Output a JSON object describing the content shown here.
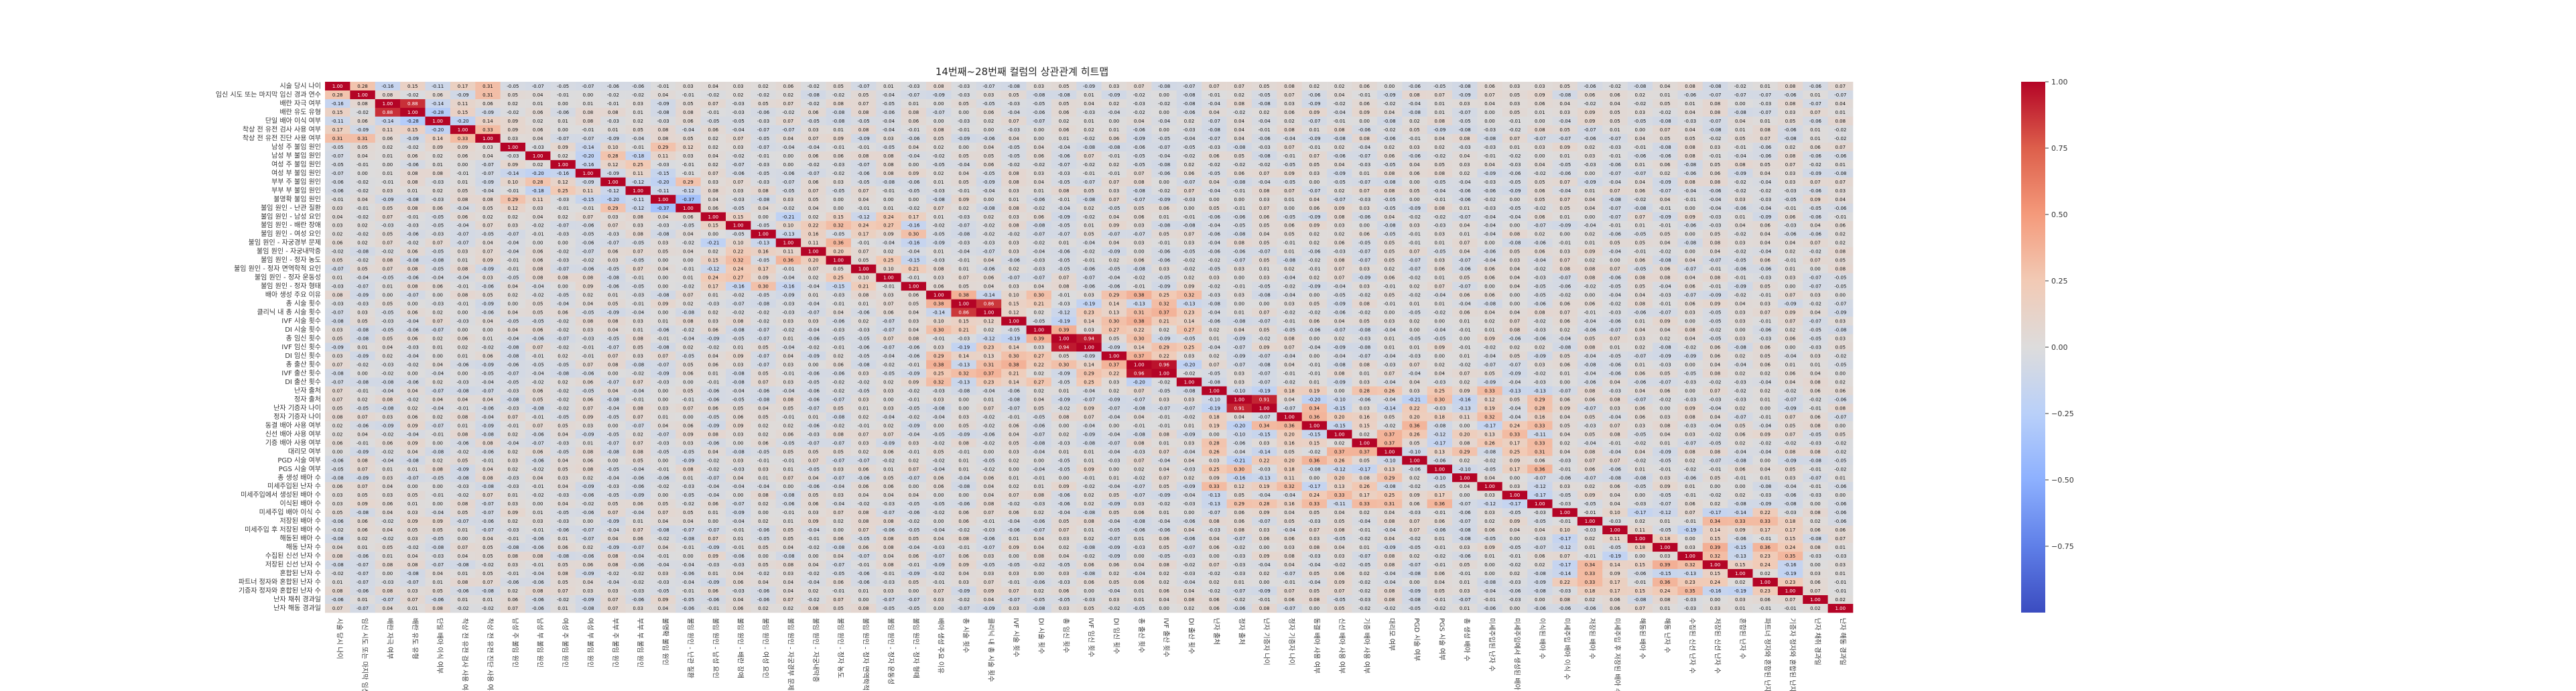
{
  "chart_data": {
    "type": "heatmap",
    "title": "14번째~28번째 컬럼의 상관관계 히트맵",
    "xlabel": "",
    "ylabel": "",
    "value_range": [
      -1,
      1
    ],
    "colormap": "coolwarm",
    "annotated": true,
    "colorbar": {
      "ticks": [
        1.0,
        0.75,
        0.5,
        0.25,
        0.0,
        -0.25,
        -0.5,
        -0.75
      ],
      "tick_labels": [
        "1.00",
        "0.75",
        "0.50",
        "0.25",
        "0.00",
        "−0.25",
        "−0.50",
        "−0.75"
      ],
      "position": "right"
    },
    "labels": [
      "시술 당시 나이",
      "임신 시도 또는 마지막 임신 경과 연수",
      "배란 자극 여부",
      "배란 유도 유형",
      "단일 배아 이식 여부",
      "착상 전 유전 검사 사용 여부",
      "착상 전 유전 진단 사용 여부",
      "남성 주 불임 원인",
      "남성 부 불임 원인",
      "여성 주 불임 원인",
      "여성 부 불임 원인",
      "부부 주 불임 원인",
      "부부 부 불임 원인",
      "불명확 불임 원인",
      "불임 원인 - 난관 질환",
      "불임 원인 - 남성 요인",
      "불임 원인 - 배란 장애",
      "불임 원인 - 여성 요인",
      "불임 원인 - 자궁경부 문제",
      "불임 원인 - 자궁내막증",
      "불임 원인 - 정자 농도",
      "불임 원인 - 정자 면역학적 요인",
      "불임 원인 - 정자 운동성",
      "불임 원인 - 정자 형태",
      "배아 생성 주요 이유",
      "총 시술 횟수",
      "클리닉 내 총 시술 횟수",
      "IVF 시술 횟수",
      "DI 시술 횟수",
      "총 임신 횟수",
      "IVF 임신 횟수",
      "DI 임신 횟수",
      "총 출산 횟수",
      "IVF 출산 횟수",
      "DI 출산 횟수",
      "난자 출처",
      "정자 출처",
      "난자 기증자 나이",
      "정자 기증자 나이",
      "동결 배아 사용 여부",
      "신선 배아 사용 여부",
      "기증 배아 사용 여부",
      "대리모 여부",
      "PGD 시술 여부",
      "PGS 시술 여부",
      "총 생성 배아 수",
      "미세주입된 난자 수",
      "미세주입에서 생성된 배아 수",
      "이식된 배아 수",
      "미세주입 배아 이식 수",
      "저장된 배아 수",
      "미세주입 후 저장된 배아 수",
      "해동된 배아 수",
      "해동 난자 수",
      "수집된 신선 난자 수",
      "저장된 신선 난자 수",
      "혼합된 난자 수",
      "파트너 정자와 혼합된 난자 수",
      "기증자 정자와 혼합된 난자 수",
      "난자 채취 경과일",
      "난자 해동 경과일"
    ],
    "row_labels_visible": [
      "시술 당시 나이",
      "임신 시도 또는 마지막 임신 경과 연수",
      "배란 자극 여부",
      "배란 유도 유형",
      "단일 배아 이식 여부",
      "착상 전 유전 검사 사용 여부",
      "착상 전 유전 진단 사용 여부",
      "남성 주 불임 원인",
      "남성 부 불임 원인",
      "여성 주 불임 원인",
      "여성 부 불임 원인",
      "부부 주 불임 원인",
      "부부 부 불임 원인",
      "불명확 불임 원인",
      "불임 원인 - 난관 질환",
      "불임 원인 - 남성 요인",
      "불임 원인 - 배란 장애",
      "불임 원인 - 여성 요인",
      "불임 원인 - 자궁경부 문제",
      "불임 원인 - 자궁내막증",
      "불임 원인 - 정자 농도",
      "불임 원인 - 정자 면역학적 요인",
      "불임 원인 - 정자 운동성",
      "불임 원인 - 정자 형태",
      "배아 생성 주요 이유",
      "총 시술 횟수",
      "클리닉 내 총 시술 횟수",
      "IVF 시술 횟수",
      "DI 시술 횟수",
      "총 임신 횟수",
      "IVF 임신 횟수",
      "DI 임신 횟수",
      "총 출산 횟수",
      "IVF 출산 횟수",
      "DI 출산 횟수",
      "총 생성 배아 수",
      "미세주입된 난자 수",
      "미세주입에서 생성된 배아 수",
      "이식된 배아 수",
      "미세주입 배아 이식 수",
      "저장된 배아 수",
      "미세주입 후 저장된 배아 수",
      "해동된 배아 수",
      "해동 난자 수",
      "수집된 신선 난자 수",
      "저장된 신선 난자 수",
      "혼합된 난자 수",
      "파트너 정자와 혼합된 난자 수",
      "기증자 정자와 혼합된 난자 수",
      "난자 출처",
      "정자 출처",
      "난자 기증자 나이",
      "정자 기증자 나이",
      "동결 배아 사용 여부",
      "신선 배아 사용 여부",
      "기증 배아 사용 여부",
      "대리모 여부",
      "PGD 시술 여부",
      "PGS 시술 여부"
    ],
    "blocks": [
      {
        "name": "patient",
        "rows": [
          0,
          6
        ]
      },
      {
        "name": "cause-a",
        "rows": [
          7,
          14
        ]
      },
      {
        "name": "cause-b",
        "rows": [
          15,
          23
        ]
      },
      {
        "name": "history",
        "rows": [
          24,
          34
        ]
      },
      {
        "name": "embryo",
        "rows": [
          35,
          48
        ]
      },
      {
        "name": "donor",
        "rows": [
          49,
          58
        ]
      }
    ],
    "highlights": [
      {
        "r": 0,
        "c": 0,
        "v": 1.0
      },
      {
        "r": 1,
        "c": 1,
        "v": 1.0
      },
      {
        "r": 2,
        "c": 2,
        "v": 1.0
      },
      {
        "r": 2,
        "c": 3,
        "v": 0.88
      },
      {
        "r": 3,
        "c": 3,
        "v": 1.0
      },
      {
        "r": 3,
        "c": 2,
        "v": 0.88
      },
      {
        "r": 4,
        "c": 4,
        "v": 1.0
      },
      {
        "r": 4,
        "c": 3,
        "v": -0.28
      },
      {
        "r": 5,
        "c": 5,
        "v": 1.0
      },
      {
        "r": 6,
        "c": 6,
        "v": 1.0
      },
      {
        "r": 7,
        "c": 7,
        "v": 1.0
      },
      {
        "r": 8,
        "c": 8,
        "v": 1.0
      },
      {
        "r": 9,
        "c": 9,
        "v": 1.0
      },
      {
        "r": 10,
        "c": 10,
        "v": 1.0
      },
      {
        "r": 11,
        "c": 11,
        "v": 1.0
      },
      {
        "r": 12,
        "c": 12,
        "v": 1.0
      },
      {
        "r": 13,
        "c": 13,
        "v": 1.0
      },
      {
        "r": 14,
        "c": 14,
        "v": 1.0
      },
      {
        "r": 13,
        "c": 14,
        "v": -0.37
      },
      {
        "r": 15,
        "c": 15,
        "v": 1.0
      },
      {
        "r": 16,
        "c": 16,
        "v": 1.0
      },
      {
        "r": 17,
        "c": 17,
        "v": 1.0
      },
      {
        "r": 18,
        "c": 18,
        "v": 1.0
      },
      {
        "r": 19,
        "c": 19,
        "v": 1.0
      },
      {
        "r": 20,
        "c": 20,
        "v": 1.0
      },
      {
        "r": 21,
        "c": 21,
        "v": 1.0
      },
      {
        "r": 22,
        "c": 22,
        "v": 1.0
      },
      {
        "r": 23,
        "c": 23,
        "v": 1.0
      },
      {
        "r": 24,
        "c": 24,
        "v": 1.0
      },
      {
        "r": 25,
        "c": 25,
        "v": 1.0
      },
      {
        "r": 26,
        "c": 26,
        "v": 1.0
      },
      {
        "r": 25,
        "c": 26,
        "v": 0.86
      },
      {
        "r": 27,
        "c": 27,
        "v": 1.0
      },
      {
        "r": 28,
        "c": 28,
        "v": 1.0
      },
      {
        "r": 29,
        "c": 29,
        "v": 1.0
      },
      {
        "r": 30,
        "c": 30,
        "v": 1.0
      },
      {
        "r": 29,
        "c": 30,
        "v": 0.94
      },
      {
        "r": 31,
        "c": 31,
        "v": 1.0
      },
      {
        "r": 32,
        "c": 32,
        "v": 1.0
      },
      {
        "r": 33,
        "c": 33,
        "v": 1.0
      },
      {
        "r": 32,
        "c": 33,
        "v": 0.96
      },
      {
        "r": 34,
        "c": 34,
        "v": 1.0
      },
      {
        "r": 35,
        "c": 35,
        "v": 1.0
      },
      {
        "r": 36,
        "c": 36,
        "v": 1.0
      },
      {
        "r": 37,
        "c": 37,
        "v": 1.0
      },
      {
        "r": 36,
        "c": 37,
        "v": 0.91
      },
      {
        "r": 38,
        "c": 38,
        "v": 1.0
      },
      {
        "r": 39,
        "c": 39,
        "v": 1.0
      },
      {
        "r": 40,
        "c": 40,
        "v": 1.0
      },
      {
        "r": 41,
        "c": 41,
        "v": 1.0
      },
      {
        "r": 42,
        "c": 42,
        "v": 1.0
      },
      {
        "r": 43,
        "c": 43,
        "v": 1.0
      },
      {
        "r": 44,
        "c": 44,
        "v": 1.0
      },
      {
        "r": 45,
        "c": 45,
        "v": 1.0
      },
      {
        "r": 46,
        "c": 46,
        "v": 1.0
      },
      {
        "r": 47,
        "c": 47,
        "v": 1.0
      },
      {
        "r": 48,
        "c": 48,
        "v": 1.0
      },
      {
        "r": 49,
        "c": 49,
        "v": 1.0
      },
      {
        "r": 50,
        "c": 50,
        "v": 1.0
      },
      {
        "r": 51,
        "c": 51,
        "v": 1.0
      },
      {
        "r": 52,
        "c": 52,
        "v": 1.0
      },
      {
        "r": 53,
        "c": 53,
        "v": 1.0
      },
      {
        "r": 54,
        "c": 54,
        "v": 1.0
      },
      {
        "r": 55,
        "c": 55,
        "v": 1.0
      },
      {
        "r": 56,
        "c": 56,
        "v": 1.0
      },
      {
        "r": 57,
        "c": 57,
        "v": 1.0
      },
      {
        "r": 58,
        "c": 58,
        "v": 1.0
      }
    ]
  }
}
